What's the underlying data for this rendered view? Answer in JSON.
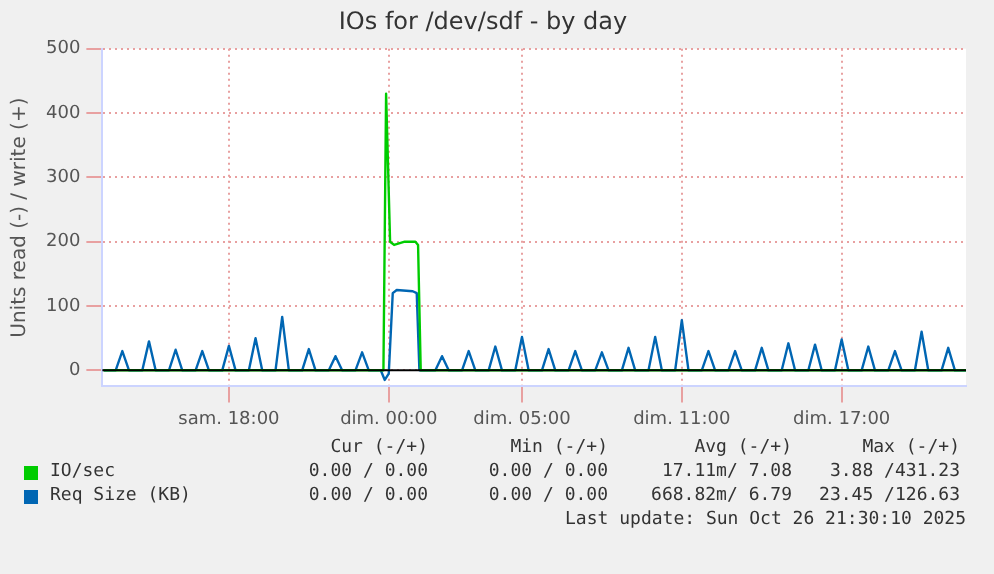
{
  "chart_data": {
    "type": "line",
    "title": "IOs for /dev/sdf - by day",
    "ylabel": "Units read (-) / write (+)",
    "xlim": [
      "2025-10-25T13:15",
      "2025-10-26T21:40"
    ],
    "xticks": [
      {
        "value": "2025-10-25T18:00",
        "label": "sam. 18:00"
      },
      {
        "value": "2025-10-26T00:00",
        "label": "dim. 00:00"
      },
      {
        "value": "2025-10-26T05:00",
        "label": "dim. 05:00"
      },
      {
        "value": "2025-10-26T11:00",
        "label": "dim. 11:00"
      },
      {
        "value": "2025-10-26T17:00",
        "label": "dim. 17:00"
      }
    ],
    "ylim": [
      -25,
      500
    ],
    "yticks": [
      0,
      100,
      200,
      300,
      400,
      500
    ],
    "grid": true,
    "legend": "bottom",
    "ref_lines": [
      {
        "axis": "y",
        "value": 0,
        "color": "#000000"
      }
    ],
    "series": [
      {
        "name": "IO/sec",
        "color": "#00cc00",
        "x": [
          "2025-10-25T13:18",
          "2025-10-25T23:48",
          "2025-10-25T23:54",
          "2025-10-26T00:03",
          "2025-10-26T00:12",
          "2025-10-26T00:36",
          "2025-10-26T01:00",
          "2025-10-26T01:06",
          "2025-10-26T01:12",
          "2025-10-26T21:40"
        ],
        "values": [
          0,
          0,
          430,
          200,
          195,
          200,
          200,
          195,
          0,
          0
        ]
      },
      {
        "name": "Req Size (KB)",
        "color": "#0066b3",
        "x": [
          "2025-10-25T13:18",
          "2025-10-25T13:45",
          "2025-10-25T14:00",
          "2025-10-25T14:15",
          "2025-10-25T14:45",
          "2025-10-25T15:00",
          "2025-10-25T15:15",
          "2025-10-25T15:45",
          "2025-10-25T16:00",
          "2025-10-25T16:15",
          "2025-10-25T16:45",
          "2025-10-25T17:00",
          "2025-10-25T17:15",
          "2025-10-25T17:45",
          "2025-10-25T18:00",
          "2025-10-25T18:15",
          "2025-10-25T18:45",
          "2025-10-25T19:00",
          "2025-10-25T19:15",
          "2025-10-25T19:45",
          "2025-10-25T20:00",
          "2025-10-25T20:15",
          "2025-10-25T20:45",
          "2025-10-25T21:00",
          "2025-10-25T21:15",
          "2025-10-25T21:45",
          "2025-10-25T22:00",
          "2025-10-25T22:15",
          "2025-10-25T22:45",
          "2025-10-25T23:00",
          "2025-10-25T23:15",
          "2025-10-25T23:42",
          "2025-10-25T23:51",
          "2025-10-26T00:00",
          "2025-10-26T00:09",
          "2025-10-26T00:18",
          "2025-10-26T00:54",
          "2025-10-26T01:03",
          "2025-10-26T01:09",
          "2025-10-26T01:45",
          "2025-10-26T02:00",
          "2025-10-26T02:15",
          "2025-10-26T02:45",
          "2025-10-26T03:00",
          "2025-10-26T03:15",
          "2025-10-26T03:45",
          "2025-10-26T04:00",
          "2025-10-26T04:15",
          "2025-10-26T04:45",
          "2025-10-26T05:00",
          "2025-10-26T05:15",
          "2025-10-26T05:45",
          "2025-10-26T06:00",
          "2025-10-26T06:15",
          "2025-10-26T06:45",
          "2025-10-26T07:00",
          "2025-10-26T07:15",
          "2025-10-26T07:45",
          "2025-10-26T08:00",
          "2025-10-26T08:15",
          "2025-10-26T08:45",
          "2025-10-26T09:00",
          "2025-10-26T09:15",
          "2025-10-26T09:45",
          "2025-10-26T10:00",
          "2025-10-26T10:15",
          "2025-10-26T10:45",
          "2025-10-26T11:00",
          "2025-10-26T11:15",
          "2025-10-26T11:45",
          "2025-10-26T12:00",
          "2025-10-26T12:15",
          "2025-10-26T12:45",
          "2025-10-26T13:00",
          "2025-10-26T13:15",
          "2025-10-26T13:45",
          "2025-10-26T14:00",
          "2025-10-26T14:15",
          "2025-10-26T14:45",
          "2025-10-26T15:00",
          "2025-10-26T15:15",
          "2025-10-26T15:45",
          "2025-10-26T16:00",
          "2025-10-26T16:15",
          "2025-10-26T16:45",
          "2025-10-26T17:00",
          "2025-10-26T17:15",
          "2025-10-26T17:45",
          "2025-10-26T18:00",
          "2025-10-26T18:15",
          "2025-10-26T18:45",
          "2025-10-26T19:00",
          "2025-10-26T19:15",
          "2025-10-26T19:45",
          "2025-10-26T20:00",
          "2025-10-26T20:15",
          "2025-10-26T20:45",
          "2025-10-26T21:00",
          "2025-10-26T21:15",
          "2025-10-26T21:40"
        ],
        "values": [
          0,
          0,
          30,
          0,
          0,
          45,
          0,
          0,
          32,
          0,
          0,
          30,
          0,
          0,
          38,
          0,
          0,
          50,
          0,
          0,
          83,
          0,
          0,
          33,
          0,
          0,
          22,
          0,
          0,
          28,
          0,
          0,
          -15,
          -5,
          120,
          125,
          123,
          120,
          0,
          0,
          22,
          0,
          0,
          30,
          0,
          0,
          37,
          0,
          0,
          52,
          0,
          0,
          33,
          0,
          0,
          30,
          0,
          0,
          28,
          0,
          0,
          35,
          0,
          0,
          52,
          0,
          0,
          78,
          0,
          0,
          30,
          0,
          0,
          30,
          0,
          0,
          35,
          0,
          0,
          42,
          0,
          0,
          40,
          0,
          0,
          48,
          0,
          0,
          37,
          0,
          0,
          30,
          0,
          0,
          60,
          0,
          0,
          35,
          0,
          0
        ]
      }
    ],
    "annotations": [
      "Cur (-/+)",
      "Min (-/+)",
      "Avg (-/+)",
      "Max (-/+)",
      "0.00 / 0.00",
      "0.00 / 0.00",
      "17.11m/ 7.08",
      "3.88 /431.23",
      "0.00 / 0.00",
      "0.00 / 0.00",
      "668.82m/ 6.79",
      "23.45 /126.63",
      "Last update: Sun Oct 26 21:30:10 2025"
    ]
  }
}
